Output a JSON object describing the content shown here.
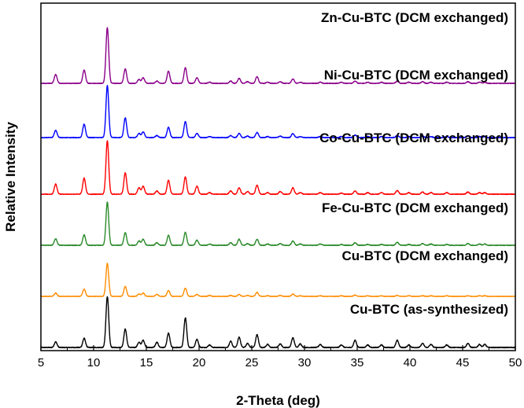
{
  "chart_data": {
    "type": "line",
    "xlabel": "2-Theta (deg)",
    "ylabel": "Relative Intensity",
    "xlim": [
      5,
      50
    ],
    "x_ticks": [
      5,
      10,
      15,
      20,
      25,
      30,
      35,
      40,
      45,
      50
    ],
    "y_ticks_shown": false,
    "grid": false,
    "legend": "none",
    "peaks": [
      {
        "pos": 6.4,
        "w": 0.13
      },
      {
        "pos": 9.1,
        "w": 0.13
      },
      {
        "pos": 11.3,
        "w": 0.13
      },
      {
        "pos": 13.0,
        "w": 0.13
      },
      {
        "pos": 14.3,
        "w": 0.13
      },
      {
        "pos": 14.7,
        "w": 0.13
      },
      {
        "pos": 16.0,
        "w": 0.13
      },
      {
        "pos": 17.1,
        "w": 0.13
      },
      {
        "pos": 18.7,
        "w": 0.13
      },
      {
        "pos": 19.8,
        "w": 0.13
      },
      {
        "pos": 21.0,
        "w": 0.13
      },
      {
        "pos": 23.0,
        "w": 0.13
      },
      {
        "pos": 23.8,
        "w": 0.13
      },
      {
        "pos": 24.6,
        "w": 0.13
      },
      {
        "pos": 25.5,
        "w": 0.13
      },
      {
        "pos": 26.5,
        "w": 0.13
      },
      {
        "pos": 27.7,
        "w": 0.13
      },
      {
        "pos": 28.9,
        "w": 0.13
      },
      {
        "pos": 29.6,
        "w": 0.13
      },
      {
        "pos": 31.5,
        "w": 0.13
      },
      {
        "pos": 33.5,
        "w": 0.13
      },
      {
        "pos": 34.8,
        "w": 0.13
      },
      {
        "pos": 36.0,
        "w": 0.13
      },
      {
        "pos": 37.3,
        "w": 0.13
      },
      {
        "pos": 38.8,
        "w": 0.13
      },
      {
        "pos": 39.9,
        "w": 0.13
      },
      {
        "pos": 41.2,
        "w": 0.13
      },
      {
        "pos": 42.0,
        "w": 0.13
      },
      {
        "pos": 43.5,
        "w": 0.13
      },
      {
        "pos": 45.5,
        "w": 0.13
      },
      {
        "pos": 46.6,
        "w": 0.13
      },
      {
        "pos": 47.1,
        "w": 0.13
      }
    ],
    "series": [
      {
        "name": "Cu-BTC (as-synthesized)",
        "color": "#000000",
        "scale": 65,
        "offset": 0,
        "noise": 0.5,
        "intensities": [
          0.11,
          0.18,
          1.0,
          0.36,
          0.1,
          0.14,
          0.1,
          0.28,
          0.58,
          0.16,
          0.05,
          0.12,
          0.2,
          0.08,
          0.25,
          0.06,
          0.07,
          0.19,
          0.07,
          0.06,
          0.05,
          0.14,
          0.05,
          0.05,
          0.14,
          0.05,
          0.08,
          0.06,
          0.05,
          0.08,
          0.06,
          0.06
        ]
      },
      {
        "name": "Cu-BTC (DCM exchanged)",
        "color": "#ff8c00",
        "scale": 42,
        "offset": 65,
        "noise": 0.3,
        "intensities": [
          0.1,
          0.22,
          1.0,
          0.3,
          0.07,
          0.1,
          0.06,
          0.18,
          0.25,
          0.06,
          0.03,
          0.03,
          0.06,
          0.03,
          0.12,
          0.02,
          0.03,
          0.07,
          0.02,
          0.02,
          0.02,
          0.04,
          0.02,
          0.02,
          0.03,
          0.02,
          0.02,
          0.02,
          0.02,
          0.02,
          0.02,
          0.02
        ]
      },
      {
        "name": "Fe-Cu-BTC (DCM exchanged)",
        "color": "#2a8a2a",
        "scale": 55,
        "offset": 130,
        "noise": 0.4,
        "intensities": [
          0.15,
          0.24,
          1.0,
          0.29,
          0.1,
          0.14,
          0.06,
          0.23,
          0.3,
          0.12,
          0.03,
          0.06,
          0.14,
          0.04,
          0.14,
          0.03,
          0.04,
          0.1,
          0.03,
          0.03,
          0.02,
          0.06,
          0.02,
          0.02,
          0.07,
          0.02,
          0.04,
          0.03,
          0.02,
          0.04,
          0.03,
          0.03
        ]
      },
      {
        "name": "Co-Cu-BTC (DCM exchanged)",
        "color": "#ff0000",
        "scale": 68,
        "offset": 195,
        "noise": 0.4,
        "intensities": [
          0.19,
          0.3,
          1.0,
          0.4,
          0.12,
          0.15,
          0.06,
          0.26,
          0.32,
          0.15,
          0.03,
          0.06,
          0.12,
          0.05,
          0.17,
          0.03,
          0.05,
          0.12,
          0.03,
          0.03,
          0.02,
          0.06,
          0.03,
          0.03,
          0.07,
          0.03,
          0.04,
          0.03,
          0.03,
          0.04,
          0.03,
          0.03
        ]
      },
      {
        "name": "Ni-Cu-BTC (DCM exchanged)",
        "color": "#0000ff",
        "scale": 66,
        "offset": 267,
        "noise": 0.4,
        "intensities": [
          0.14,
          0.26,
          1.0,
          0.38,
          0.08,
          0.11,
          0.04,
          0.2,
          0.31,
          0.08,
          0.02,
          0.04,
          0.08,
          0.03,
          0.1,
          0.02,
          0.03,
          0.08,
          0.02,
          0.02,
          0.02,
          0.05,
          0.02,
          0.02,
          0.04,
          0.02,
          0.03,
          0.02,
          0.02,
          0.03,
          0.02,
          0.02
        ]
      },
      {
        "name": "Zn-Cu-BTC (DCM exchanged)",
        "color": "#8b008b",
        "scale": 71,
        "offset": 336,
        "noise": 0.4,
        "intensities": [
          0.16,
          0.24,
          1.0,
          0.26,
          0.07,
          0.1,
          0.04,
          0.22,
          0.28,
          0.1,
          0.02,
          0.04,
          0.09,
          0.03,
          0.12,
          0.02,
          0.03,
          0.08,
          0.02,
          0.02,
          0.02,
          0.04,
          0.02,
          0.02,
          0.04,
          0.02,
          0.03,
          0.02,
          0.02,
          0.03,
          0.02,
          0.02
        ]
      }
    ]
  }
}
